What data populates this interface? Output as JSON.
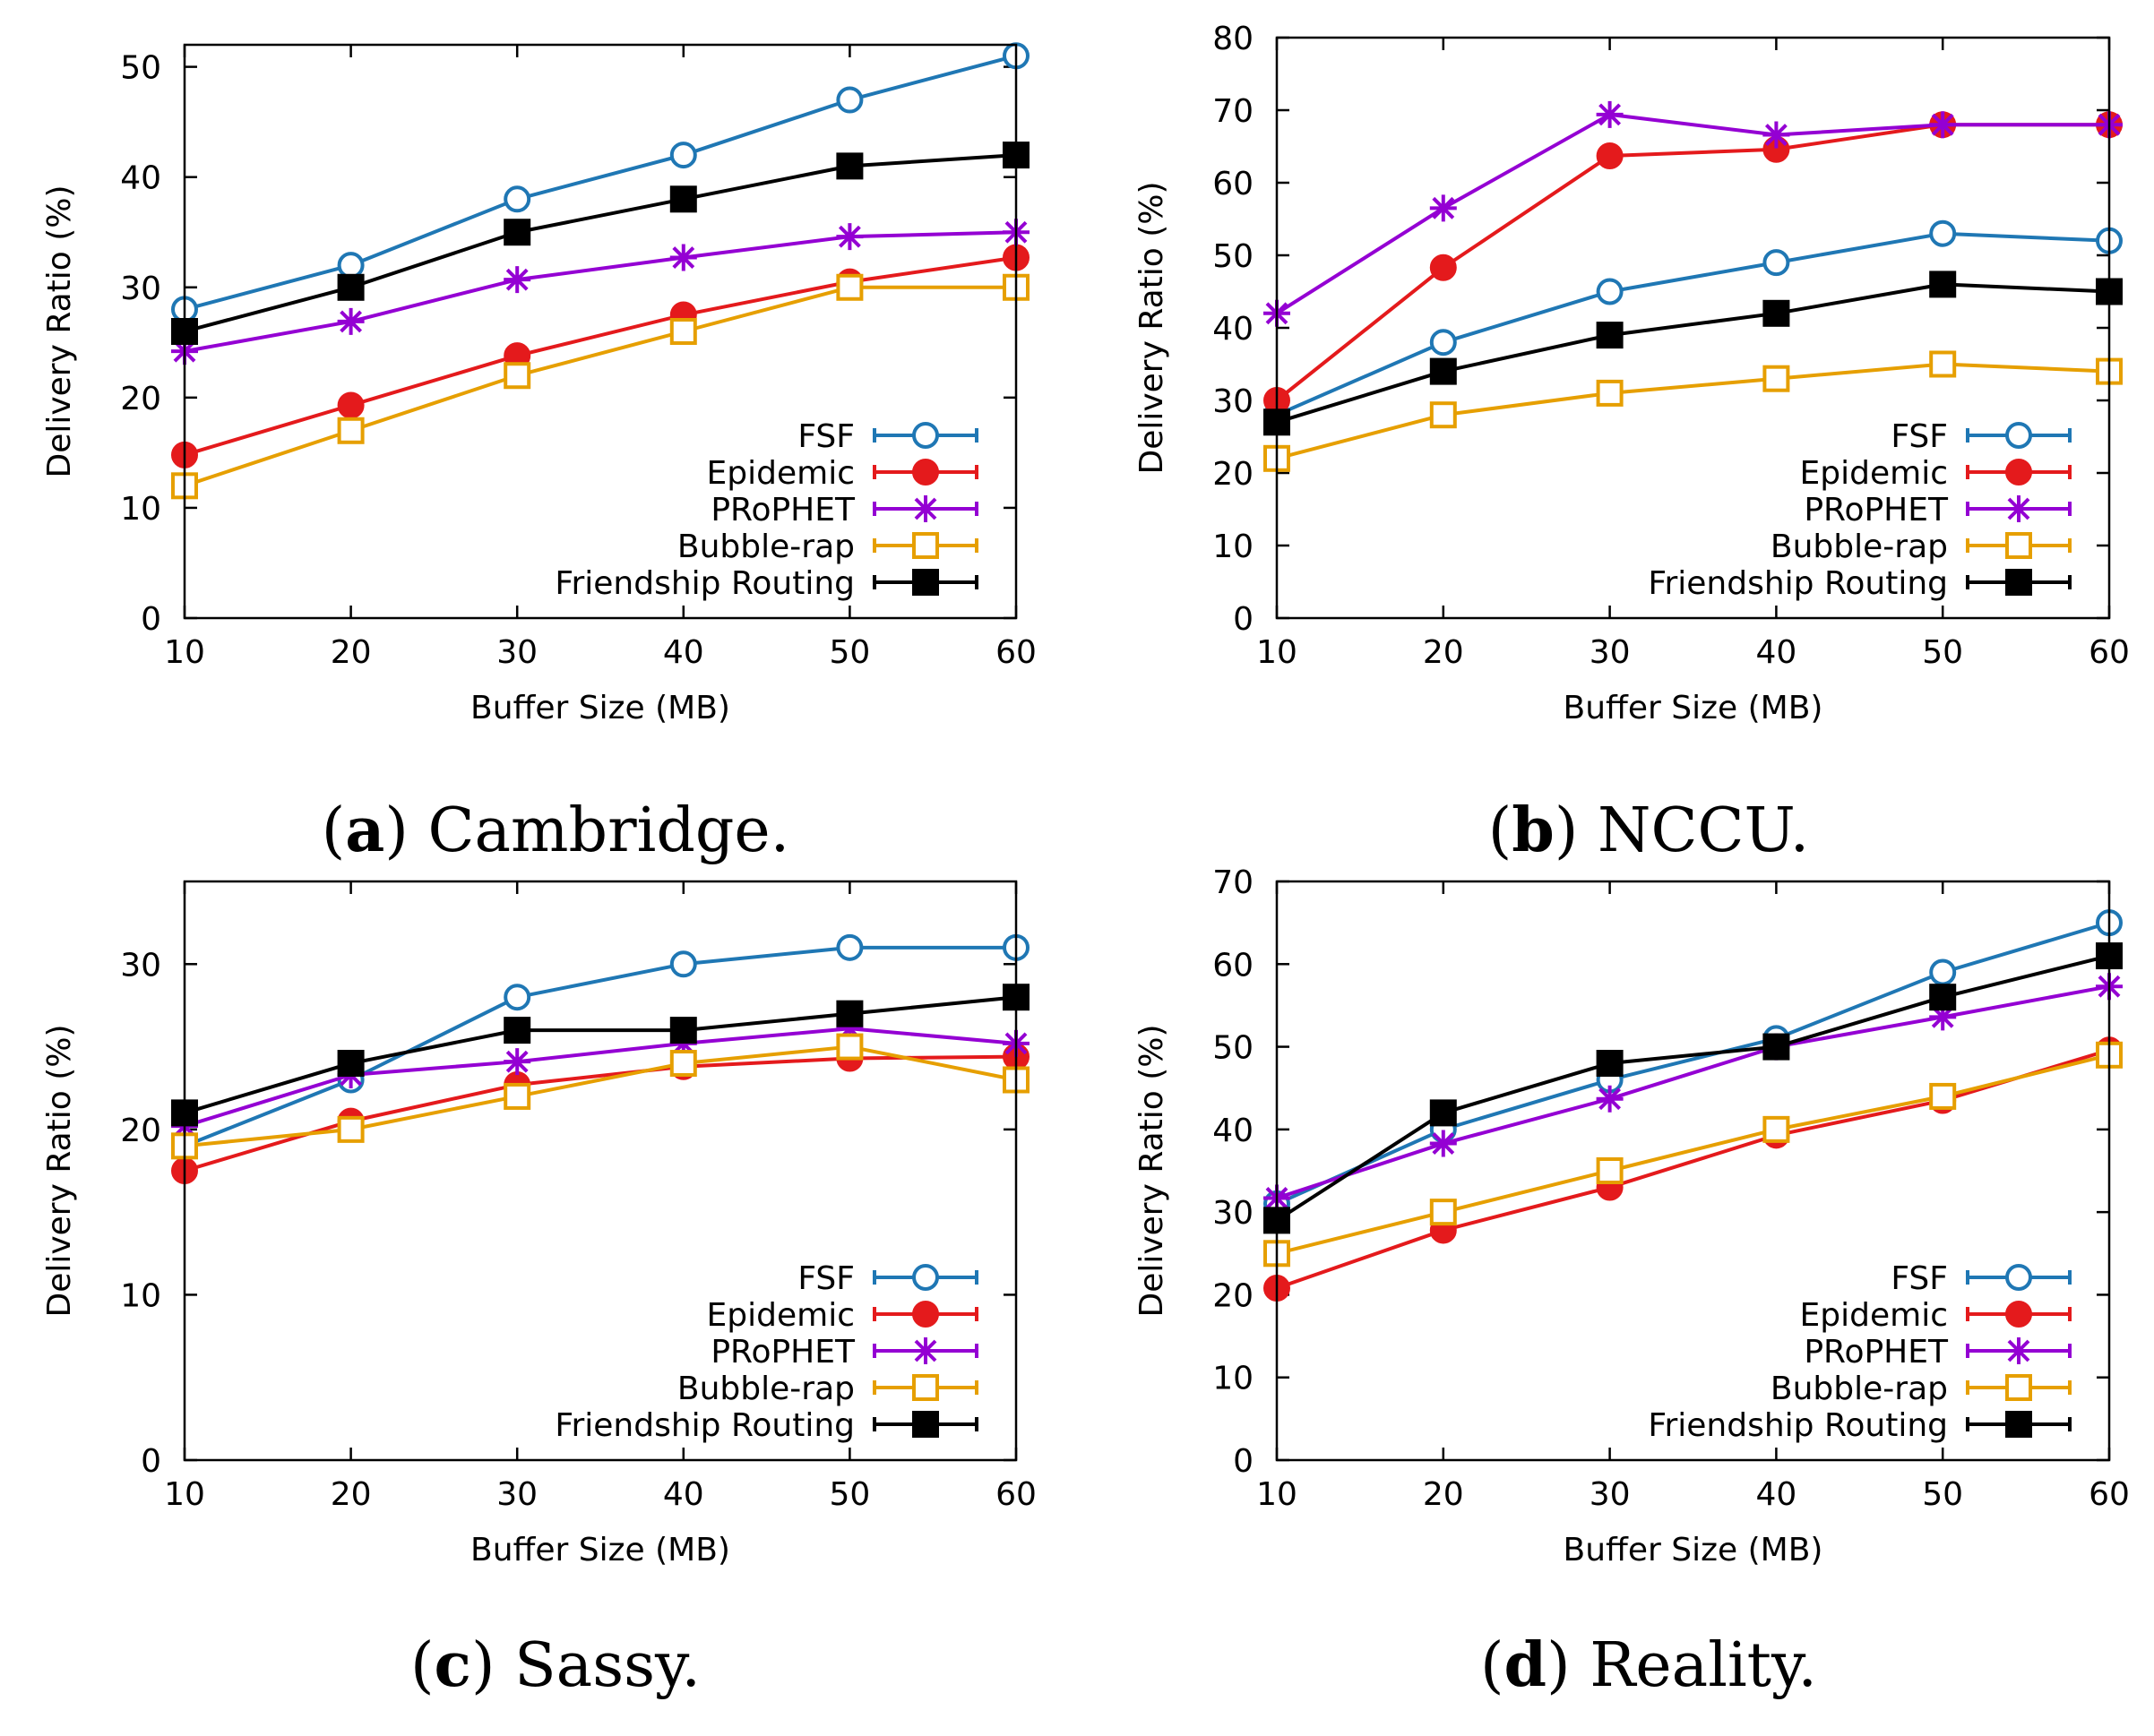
{
  "figure": {
    "colors": {
      "FSF": "#1f77b4",
      "Epidemic": "#e41a1c",
      "PRoPHET": "#9400d3",
      "Bubble-rap": "#e69f00",
      "Friendship Routing": "#000000"
    },
    "markers": {
      "FSF": "circle-open",
      "Epidemic": "circle-filled",
      "PRoPHET": "asterisk",
      "Bubble-rap": "square-open",
      "Friendship Routing": "square-filled"
    }
  },
  "chart_data": [
    {
      "type": "line",
      "caption_letter": "a",
      "caption_text": "Cambridge.",
      "xlabel": "Buffer Size (MB)",
      "ylabel": "Delivery Ratio (%)",
      "x": [
        10,
        20,
        30,
        40,
        50,
        60
      ],
      "xticks": [
        10,
        20,
        30,
        40,
        50,
        60
      ],
      "xlim": [
        10,
        60
      ],
      "ylim": [
        0,
        52
      ],
      "yticks": [
        0,
        10,
        20,
        30,
        40,
        50
      ],
      "legend_position": "bottom-right",
      "series": [
        {
          "name": "FSF",
          "values": [
            28,
            32,
            38,
            42,
            47,
            51
          ]
        },
        {
          "name": "Epidemic",
          "values": [
            14.8,
            19.3,
            23.8,
            27.5,
            30.5,
            32.7
          ]
        },
        {
          "name": "PRoPHET",
          "values": [
            24.2,
            26.9,
            30.7,
            32.7,
            34.6,
            35
          ]
        },
        {
          "name": "Bubble-rap",
          "values": [
            12,
            17,
            22,
            26,
            30,
            30
          ]
        },
        {
          "name": "Friendship Routing",
          "values": [
            26,
            30,
            35,
            38,
            41,
            42
          ]
        }
      ]
    },
    {
      "type": "line",
      "caption_letter": "b",
      "caption_text": "NCCU.",
      "xlabel": "Buffer Size (MB)",
      "ylabel": "Delivery Ratio (%)",
      "x": [
        10,
        20,
        30,
        40,
        50,
        60
      ],
      "xticks": [
        10,
        20,
        30,
        40,
        50,
        60
      ],
      "xlim": [
        10,
        60
      ],
      "ylim": [
        0,
        80
      ],
      "yticks": [
        0,
        10,
        20,
        30,
        40,
        50,
        60,
        70,
        80
      ],
      "legend_position": "bottom-right",
      "series": [
        {
          "name": "FSF",
          "values": [
            28,
            38,
            45,
            49,
            53,
            52
          ]
        },
        {
          "name": "Epidemic",
          "values": [
            30,
            48.3,
            63.7,
            64.6,
            68,
            68
          ]
        },
        {
          "name": "PRoPHET",
          "values": [
            42,
            56.5,
            69.4,
            66.6,
            68,
            68
          ]
        },
        {
          "name": "Bubble-rap",
          "values": [
            22,
            28,
            31,
            33,
            35,
            34
          ]
        },
        {
          "name": "Friendship Routing",
          "values": [
            27,
            34,
            39,
            42,
            46,
            45
          ]
        }
      ]
    },
    {
      "type": "line",
      "caption_letter": "c",
      "caption_text": "Sassy.",
      "xlabel": "Buffer Size (MB)",
      "ylabel": "Delivery Ratio (%)",
      "x": [
        10,
        20,
        30,
        40,
        50,
        60
      ],
      "xticks": [
        10,
        20,
        30,
        40,
        50,
        60
      ],
      "xlim": [
        10,
        60
      ],
      "ylim": [
        0,
        35
      ],
      "yticks": [
        0,
        10,
        20,
        30
      ],
      "legend_position": "bottom-right",
      "series": [
        {
          "name": "FSF",
          "values": [
            19,
            23,
            28,
            30,
            31,
            31
          ]
        },
        {
          "name": "Epidemic",
          "values": [
            17.5,
            20.5,
            22.7,
            23.8,
            24.3,
            24.4
          ]
        },
        {
          "name": "PRoPHET",
          "values": [
            20.2,
            23.3,
            24.1,
            25.2,
            26.1,
            25.2
          ]
        },
        {
          "name": "Bubble-rap",
          "values": [
            19,
            20,
            22,
            24,
            25,
            23
          ]
        },
        {
          "name": "Friendship Routing",
          "values": [
            21,
            24,
            26,
            26,
            27,
            28
          ]
        }
      ]
    },
    {
      "type": "line",
      "caption_letter": "d",
      "caption_text": "Reality.",
      "xlabel": "Buffer Size (MB)",
      "ylabel": "Delivery Ratio (%)",
      "x": [
        10,
        20,
        30,
        40,
        50,
        60
      ],
      "xticks": [
        10,
        20,
        30,
        40,
        50,
        60
      ],
      "xlim": [
        10,
        60
      ],
      "ylim": [
        0,
        70
      ],
      "yticks": [
        0,
        10,
        20,
        30,
        40,
        50,
        60,
        70
      ],
      "legend_position": "bottom-right",
      "series": [
        {
          "name": "FSF",
          "values": [
            31,
            40,
            46,
            51,
            59,
            65
          ]
        },
        {
          "name": "Epidemic",
          "values": [
            20.8,
            27.8,
            33,
            39.3,
            43.5,
            49.6
          ]
        },
        {
          "name": "PRoPHET",
          "values": [
            31.7,
            38.3,
            43.7,
            50,
            53.6,
            57.3
          ]
        },
        {
          "name": "Bubble-rap",
          "values": [
            25,
            30,
            35,
            40,
            44,
            49
          ]
        },
        {
          "name": "Friendship Routing",
          "values": [
            29,
            42,
            48,
            50,
            56,
            61
          ]
        }
      ]
    }
  ]
}
